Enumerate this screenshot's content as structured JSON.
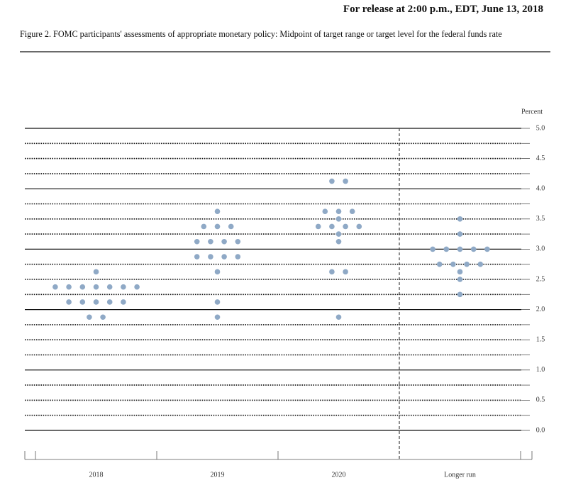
{
  "header": {
    "release": "For release at 2:00 p.m., EDT, June 13, 2018"
  },
  "chart_data": {
    "type": "dot",
    "title": "Figure 2. FOMC participants' assessments of appropriate monetary policy: Midpoint of target range or target level for the federal funds rate",
    "ylabel": "Percent",
    "categories": [
      "2018",
      "2019",
      "2020",
      "Longer run"
    ],
    "values": [
      [
        2.625,
        2.375,
        2.375,
        2.375,
        2.375,
        2.375,
        2.375,
        2.375,
        2.125,
        2.125,
        2.125,
        2.125,
        2.125,
        1.875,
        1.875
      ],
      [
        3.625,
        3.375,
        3.375,
        3.375,
        3.125,
        3.125,
        3.125,
        3.125,
        2.875,
        2.875,
        2.875,
        2.875,
        2.625,
        2.125,
        1.875
      ],
      [
        4.125,
        4.125,
        3.625,
        3.625,
        3.625,
        3.5,
        3.375,
        3.375,
        3.375,
        3.375,
        3.25,
        3.125,
        2.625,
        2.625,
        1.875
      ],
      [
        3.5,
        3.25,
        3,
        3,
        3,
        3,
        3,
        2.75,
        2.75,
        2.75,
        2.75,
        2.625,
        2.5,
        2.25
      ]
    ],
    "color": "#8fa9c6",
    "ylim": [
      0,
      5
    ],
    "yticks": [
      {
        "value": 0,
        "label": "0.0"
      },
      0.5,
      {
        "value": 1,
        "label": "1.0"
      },
      1.5,
      {
        "value": 2,
        "label": "2.0"
      },
      2.5,
      {
        "value": 3,
        "label": "3.0"
      },
      3.5,
      {
        "value": 4,
        "label": "4.0"
      },
      4.5,
      {
        "value": 5,
        "label": "5.0"
      }
    ],
    "grid": true
  }
}
